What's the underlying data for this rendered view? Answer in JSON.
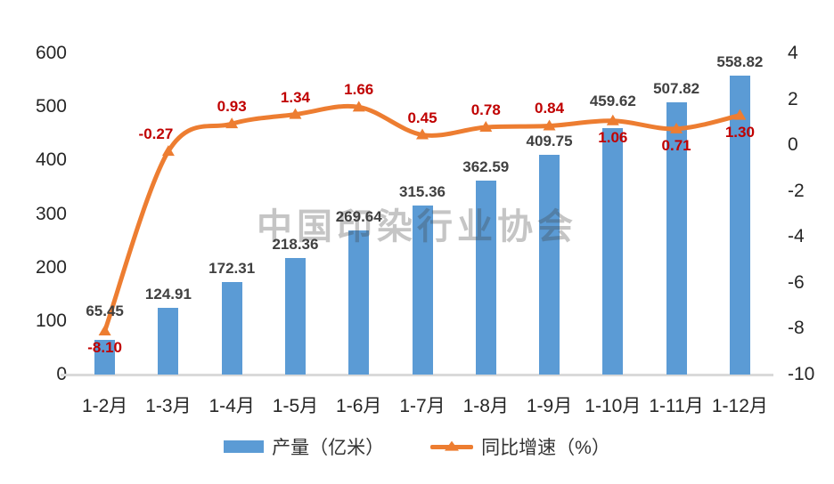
{
  "chart_data": {
    "type": "bar",
    "subtype": "combo-bar-line-dual-axis",
    "categories": [
      "1-2月",
      "1-3月",
      "1-4月",
      "1-5月",
      "1-6月",
      "1-7月",
      "1-8月",
      "1-9月",
      "1-10月",
      "1-11月",
      "1-12月"
    ],
    "series": [
      {
        "name": "产量（亿米）",
        "type": "bar",
        "axis": "left",
        "color": "#5B9BD5",
        "label_color": "#404040",
        "values": [
          65.45,
          124.91,
          172.31,
          218.36,
          269.64,
          315.36,
          362.59,
          409.75,
          459.62,
          507.82,
          558.82
        ]
      },
      {
        "name": "同比增速（%）",
        "type": "line",
        "axis": "right",
        "color": "#ED7D31",
        "label_color": "#C00000",
        "marker": "triangle",
        "smooth": true,
        "values": [
          -8.1,
          -0.27,
          0.93,
          1.34,
          1.66,
          0.45,
          0.78,
          0.84,
          1.06,
          0.71,
          1.3
        ],
        "label_positions": [
          "below",
          "above-left",
          "above",
          "above",
          "above",
          "above",
          "above",
          "above",
          "below",
          "below",
          "below"
        ]
      }
    ],
    "left_axis": {
      "min": 0,
      "max": 600,
      "step": 100,
      "ticks": [
        600,
        500,
        400,
        300,
        200,
        100,
        0
      ]
    },
    "right_axis": {
      "min": -10,
      "max": 4,
      "step": 2,
      "ticks": [
        4,
        2,
        0,
        -2,
        -4,
        -6,
        -8,
        -10
      ]
    },
    "grid": false,
    "legend_position": "bottom",
    "title": "",
    "xlabel": "",
    "ylabel": "",
    "watermark": "中国印染行业协会",
    "axis_line_color": "#D9D9D9",
    "tick_label_color": "#262626",
    "value_decimals": 2
  }
}
